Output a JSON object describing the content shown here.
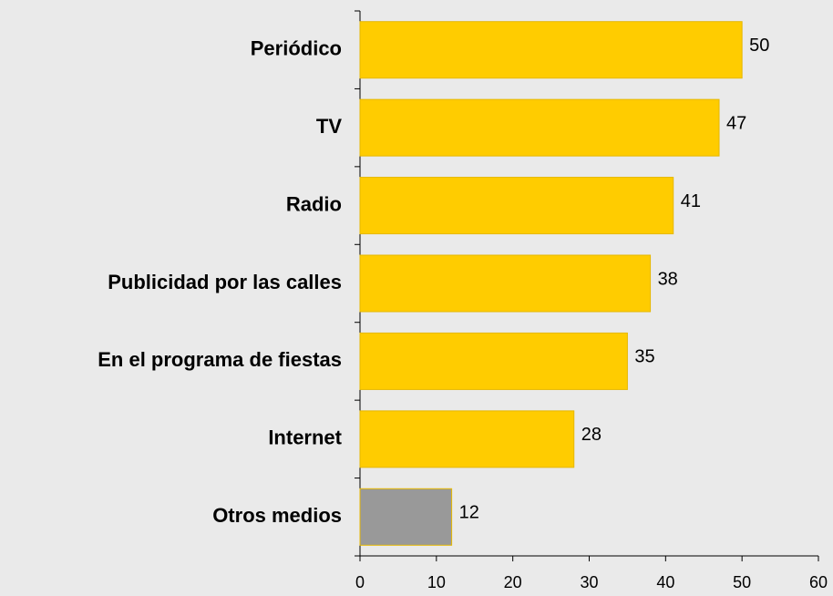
{
  "chart_data": {
    "type": "bar",
    "orientation": "horizontal",
    "categories": [
      "Periódico",
      "TV",
      "Radio",
      "Publicidad por las calles",
      "En el programa de fiestas",
      "Internet",
      "Otros medios"
    ],
    "values": [
      50,
      47,
      41,
      38,
      35,
      28,
      12
    ],
    "colors": [
      "#ffcc00",
      "#ffcc00",
      "#ffcc00",
      "#ffcc00",
      "#ffcc00",
      "#ffcc00",
      "#999999"
    ],
    "xlim": [
      0,
      60
    ],
    "xticks": [
      0,
      10,
      20,
      30,
      40,
      50,
      60
    ],
    "grid": false
  }
}
